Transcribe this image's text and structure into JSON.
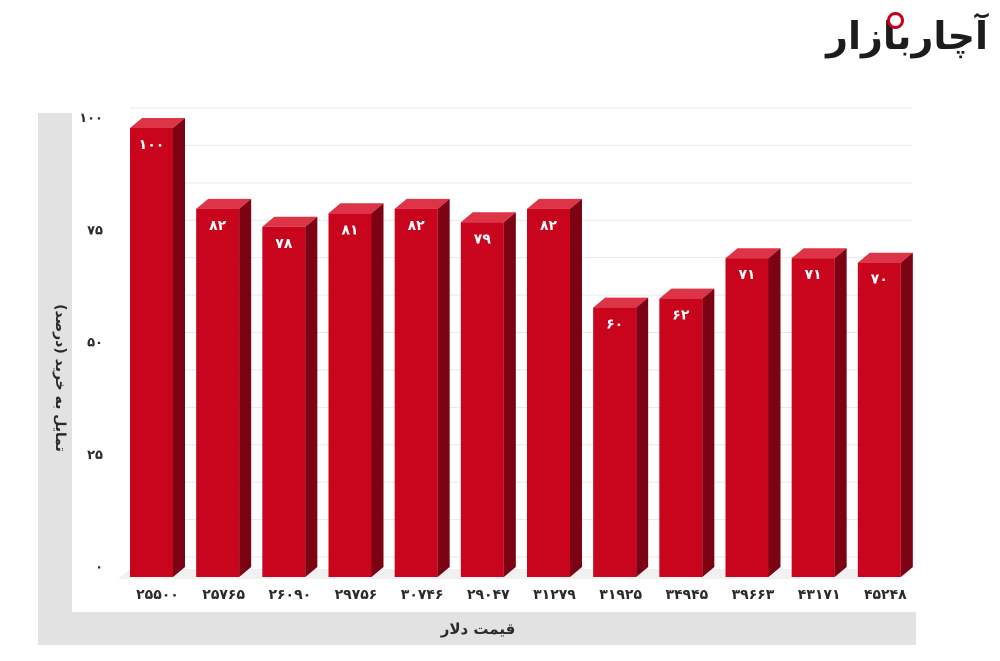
{
  "logo": {
    "text": "آچاربازار"
  },
  "colors": {
    "bar_front": "#c8051d",
    "bar_side": "#7c0314",
    "bar_top": "#de3448",
    "bar_label": "#ffffff",
    "panel_bg": "#e2e2e2",
    "grid": "#e8e8e8",
    "tick_text": "#2a2a2a"
  },
  "chart_data": {
    "type": "bar",
    "style": "3d-columns",
    "categories": [
      "۲۵۵۰۰",
      "۲۵۷۶۵",
      "۲۶۰۹۰",
      "۲۹۷۵۶",
      "۳۰۷۴۶",
      "۲۹۰۴۷",
      "۳۱۲۷۹",
      "۳۱۹۲۵",
      "۳۴۹۴۵",
      "۳۹۶۶۳",
      "۴۳۱۷۱",
      "۴۵۲۴۸"
    ],
    "values": [
      100,
      82,
      78,
      81,
      82,
      79,
      82,
      60,
      62,
      71,
      71,
      70
    ],
    "value_labels": [
      "۱۰۰",
      "۸۲",
      "۷۸",
      "۸۱",
      "۸۲",
      "۷۹",
      "۸۲",
      "۶۰",
      "۶۲",
      "۷۱",
      "۷۱",
      "۷۰"
    ],
    "yticks": [
      0,
      25,
      50,
      75,
      100
    ],
    "ytick_labels": [
      "۰",
      "۲۵",
      "۵۰",
      "۷۵",
      "۱۰۰"
    ],
    "ylim": [
      0,
      100
    ],
    "minor_grid_step": 8.333,
    "xlabel": "قیمت دلار",
    "ylabel": "تمایل به خرید (درصد)",
    "grid": true,
    "legend": "none"
  }
}
